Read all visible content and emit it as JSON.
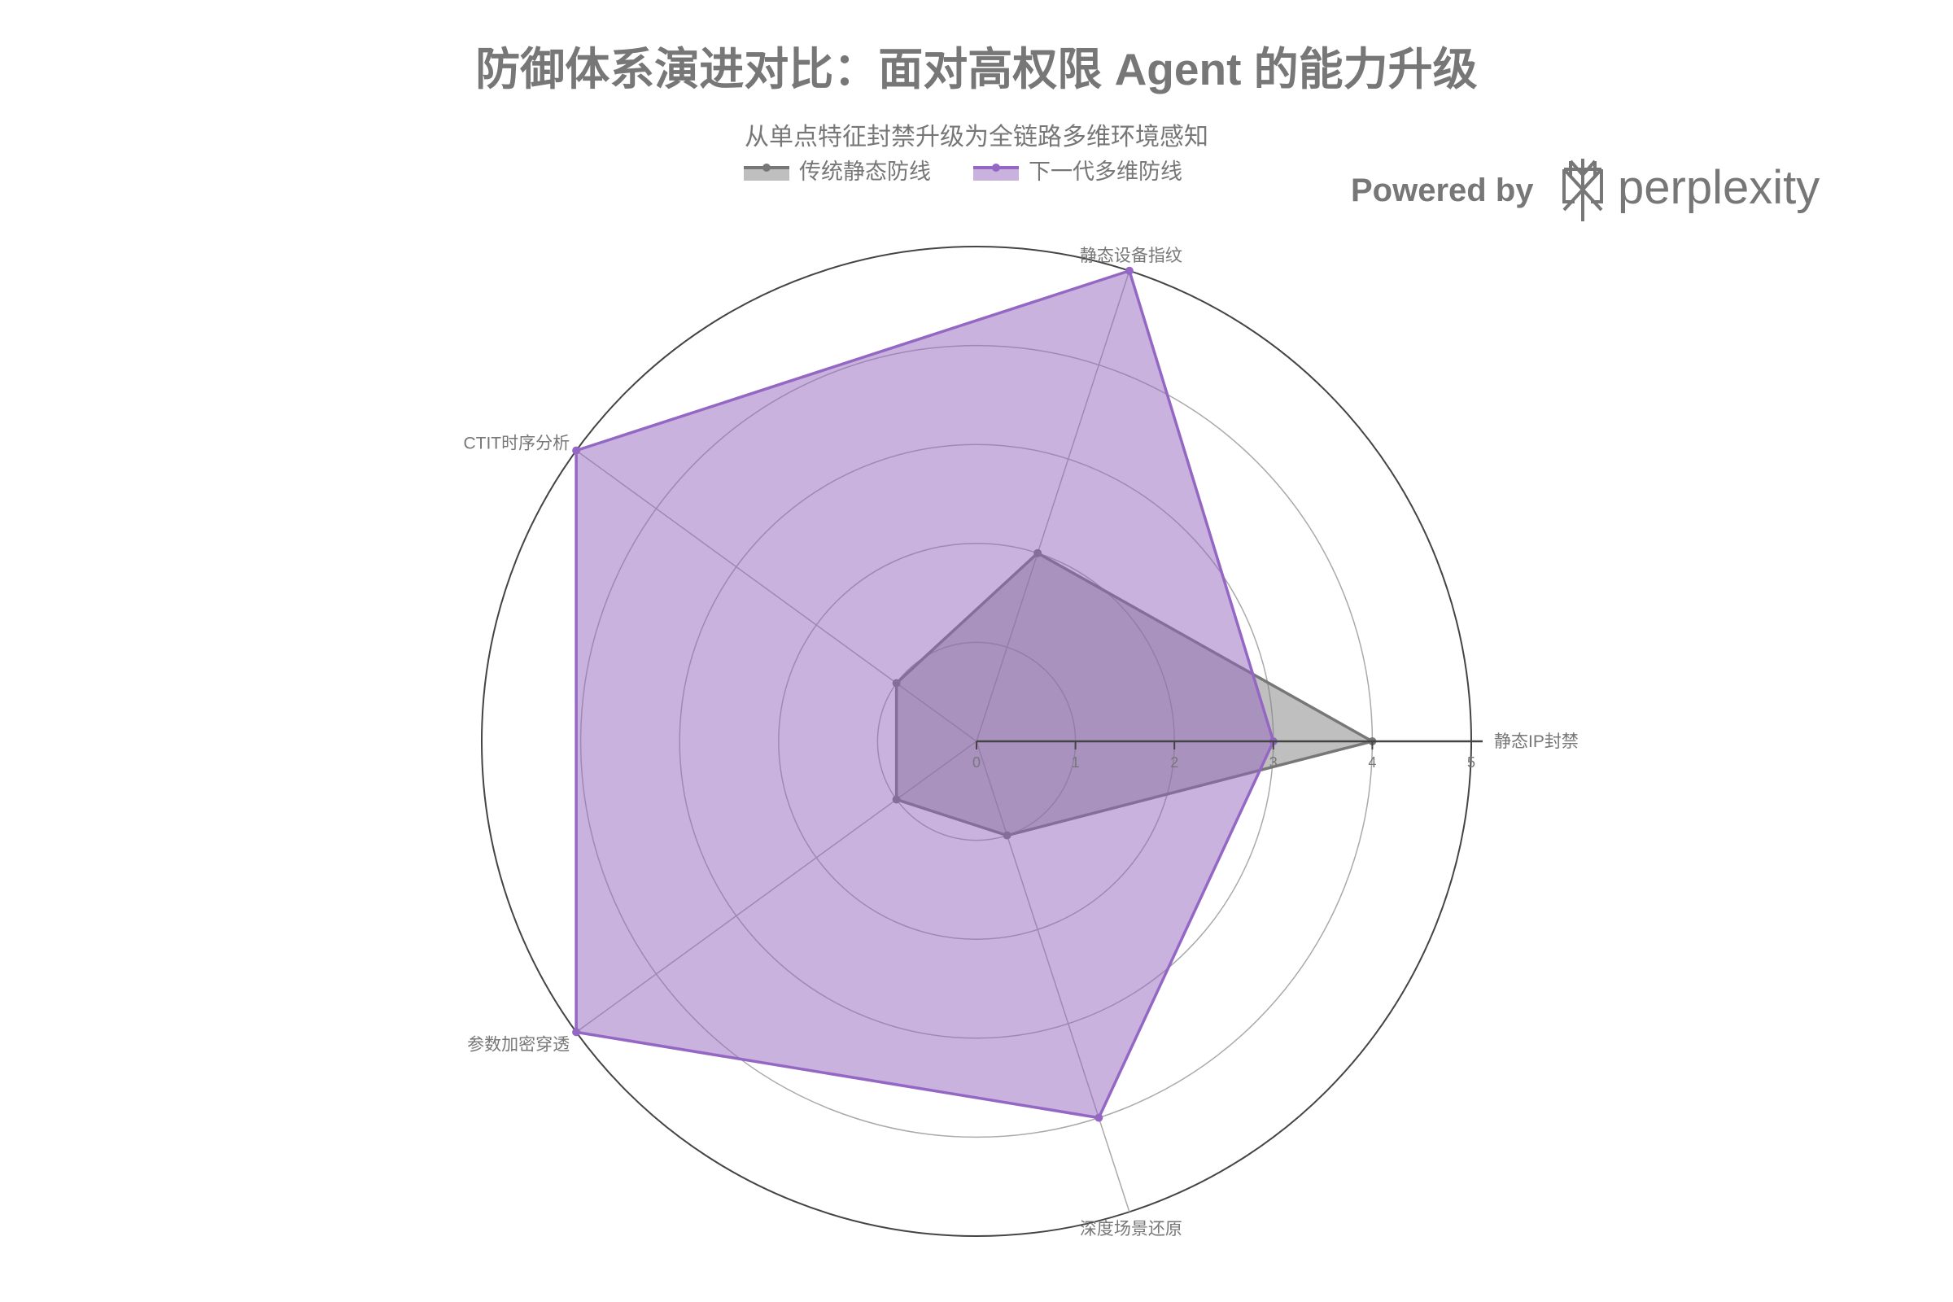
{
  "chart_data": {
    "type": "radar",
    "title": "防御体系演进对比：面对高权限 Agent 的能力升级",
    "subtitle": "从单点特征封禁升级为全链路多维环境感知",
    "categories": [
      "静态IP封禁",
      "静态设备指纹",
      "CTIT时序分析",
      "参数加密穿透",
      "深度场景还原"
    ],
    "radial_range": [
      0,
      5
    ],
    "radial_ticks": [
      "0",
      "1",
      "2",
      "3",
      "4",
      "5"
    ],
    "legend_position": "top-center",
    "series": [
      {
        "name": "传统静态防线",
        "values": [
          4,
          2,
          1,
          1,
          1
        ],
        "color": "#777777",
        "fill": "rgba(128,128,128,0.5)"
      },
      {
        "name": "下一代多维防线",
        "values": [
          3,
          5,
          5,
          5,
          4
        ],
        "color": "#9467c4",
        "fill": "rgba(148,103,189,0.5)"
      }
    ]
  },
  "branding": {
    "powered_by": "Powered by",
    "brand": "perplexity"
  }
}
